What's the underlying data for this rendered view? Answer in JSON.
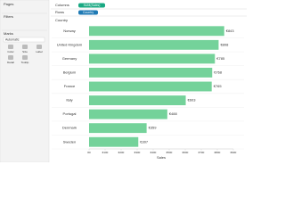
{
  "ui": {
    "pages": "Pages",
    "filters": "Filters",
    "marks": "Marks",
    "marks_type": "Automatic",
    "marks_buttons": [
      "Color",
      "Size",
      "Label",
      "Detail",
      "Tooltip"
    ],
    "columns": "Columns",
    "rows": "Rows",
    "columns_pill": "SUM(Sales)",
    "rows_pill": "Country"
  },
  "chart_data": {
    "type": "bar",
    "orientation": "horizontal",
    "row_header": "Country",
    "x_label": "Sales",
    "categories": [
      "Norway",
      "United Kingdom",
      "Germany",
      "Belgium",
      "France",
      "Italy",
      "Portugal",
      "Denmark",
      "Sweden"
    ],
    "values": [
      843,
      808,
      785,
      768,
      765,
      603,
      488,
      359,
      307
    ],
    "value_labels": [
      "€843",
      "€808",
      "€785",
      "€768",
      "€765",
      "€603",
      "€488",
      "€359",
      "€307"
    ],
    "color": "#74d29a",
    "xlim": [
      0,
      900
    ],
    "xticks": [
      {
        "value": 0,
        "label": "€0"
      },
      {
        "value": 100,
        "label": "€100"
      },
      {
        "value": 200,
        "label": "€200"
      },
      {
        "value": 300,
        "label": "€300"
      },
      {
        "value": 400,
        "label": "€400"
      },
      {
        "value": 500,
        "label": "€500"
      },
      {
        "value": 600,
        "label": "€600"
      },
      {
        "value": 700,
        "label": "€700"
      },
      {
        "value": 800,
        "label": "€800"
      },
      {
        "value": 900,
        "label": "€900"
      }
    ]
  }
}
